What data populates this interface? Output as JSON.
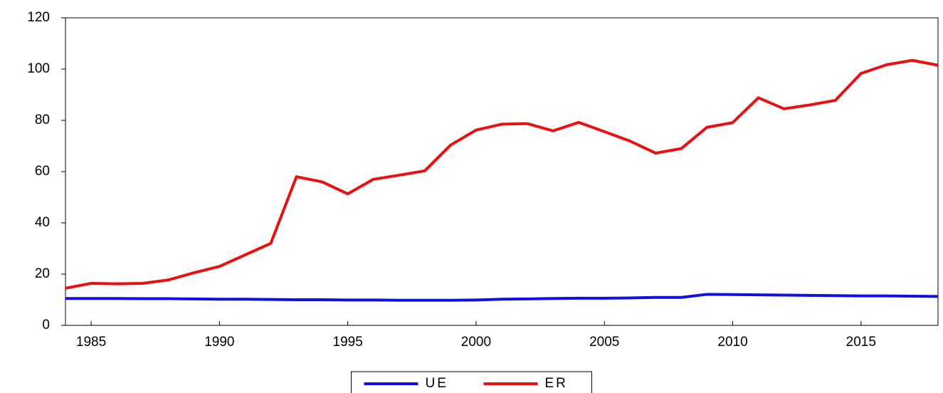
{
  "chart_data": {
    "type": "line",
    "x": [
      1984,
      1985,
      1986,
      1987,
      1988,
      1989,
      1990,
      1991,
      1992,
      1993,
      1994,
      1995,
      1996,
      1997,
      1998,
      1999,
      2000,
      2001,
      2002,
      2003,
      2004,
      2005,
      2006,
      2007,
      2008,
      2009,
      2010,
      2011,
      2012,
      2013,
      2014,
      2015,
      2016,
      2017,
      2018
    ],
    "series": [
      {
        "name": "UE",
        "color": "#1010e0",
        "values": [
          10.5,
          10.5,
          10.5,
          10.4,
          10.4,
          10.3,
          10.2,
          10.2,
          10.1,
          10.0,
          10.0,
          9.9,
          9.9,
          9.8,
          9.8,
          9.8,
          9.9,
          10.2,
          10.3,
          10.5,
          10.6,
          10.6,
          10.7,
          10.9,
          10.9,
          12.1,
          12.0,
          11.9,
          11.8,
          11.7,
          11.6,
          11.5,
          11.5,
          11.4,
          11.3
        ]
      },
      {
        "name": "ER",
        "color": "#e81010",
        "values": [
          14.5,
          16.4,
          16.2,
          16.4,
          17.7,
          20.5,
          23.0,
          27.5,
          32.0,
          58.0,
          56.0,
          51.3,
          57.0,
          58.6,
          60.3,
          70.3,
          76.2,
          78.5,
          78.7,
          75.9,
          79.2,
          75.6,
          71.9,
          67.2,
          69.0,
          77.3,
          79.1,
          88.8,
          84.5,
          86.0,
          87.8,
          98.3,
          101.7,
          103.4,
          101.5
        ]
      }
    ],
    "xlim": [
      1984,
      2018
    ],
    "xticks": [
      1985,
      1990,
      1995,
      2000,
      2005,
      2010,
      2015
    ],
    "ylim": [
      0,
      120
    ],
    "yticks": [
      0,
      20,
      40,
      60,
      80,
      100,
      120
    ],
    "grid": false,
    "legend": "bottom"
  }
}
